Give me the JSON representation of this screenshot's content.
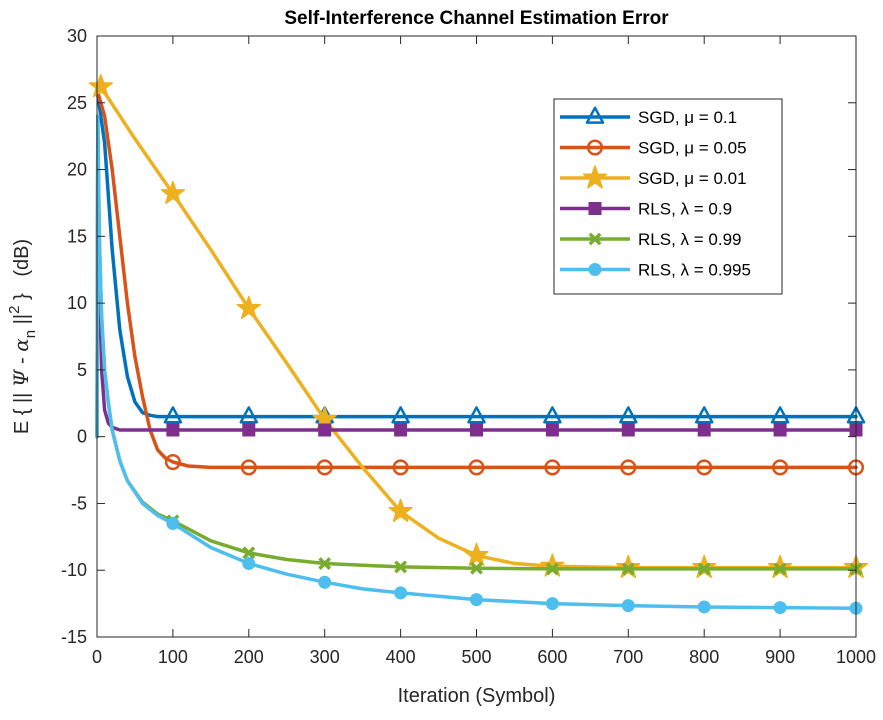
{
  "chart_data": {
    "type": "line",
    "title": "Self-Interference Channel Estimation Error",
    "xlabel": "Iteration (Symbol)",
    "ylabel": "E { || Ψ - α_n ||^2 }   (dB)",
    "xlim": [
      0,
      1000
    ],
    "ylim": [
      -15,
      30
    ],
    "xticks": [
      0,
      100,
      200,
      300,
      400,
      500,
      600,
      700,
      800,
      900,
      1000
    ],
    "yticks": [
      -15,
      -10,
      -5,
      0,
      5,
      10,
      15,
      20,
      25,
      30
    ],
    "grid": false,
    "legend_position": "top-right",
    "series": [
      {
        "name": "SGD, μ = 0.1",
        "color": "#0072BD",
        "marker": "triangle",
        "points": [
          [
            0,
            26
          ],
          [
            10,
            22
          ],
          [
            20,
            14
          ],
          [
            30,
            8
          ],
          [
            40,
            4.5
          ],
          [
            50,
            2.6
          ],
          [
            60,
            1.8
          ],
          [
            70,
            1.6
          ],
          [
            80,
            1.5
          ],
          [
            100,
            1.5
          ],
          [
            200,
            1.5
          ],
          [
            300,
            1.5
          ],
          [
            400,
            1.5
          ],
          [
            500,
            1.5
          ],
          [
            600,
            1.5
          ],
          [
            700,
            1.5
          ],
          [
            800,
            1.5
          ],
          [
            900,
            1.5
          ],
          [
            1000,
            1.5
          ]
        ],
        "marker_x": [
          100,
          200,
          300,
          400,
          500,
          600,
          700,
          800,
          900,
          1000
        ]
      },
      {
        "name": "SGD, μ = 0.05",
        "color": "#D95319",
        "marker": "circle",
        "points": [
          [
            0,
            26
          ],
          [
            10,
            24
          ],
          [
            20,
            20
          ],
          [
            30,
            15
          ],
          [
            40,
            10
          ],
          [
            50,
            6
          ],
          [
            60,
            3
          ],
          [
            70,
            0.5
          ],
          [
            80,
            -1
          ],
          [
            90,
            -1.6
          ],
          [
            100,
            -1.9
          ],
          [
            120,
            -2.2
          ],
          [
            150,
            -2.3
          ],
          [
            200,
            -2.3
          ],
          [
            300,
            -2.3
          ],
          [
            400,
            -2.3
          ],
          [
            500,
            -2.3
          ],
          [
            600,
            -2.3
          ],
          [
            700,
            -2.3
          ],
          [
            800,
            -2.3
          ],
          [
            900,
            -2.3
          ],
          [
            1000,
            -2.3
          ]
        ],
        "marker_x": [
          100,
          200,
          300,
          400,
          500,
          600,
          700,
          800,
          900,
          1000
        ]
      },
      {
        "name": "SGD, μ = 0.01",
        "color": "#EDB120",
        "marker": "star",
        "points": [
          [
            5,
            26.2
          ],
          [
            50,
            22.3
          ],
          [
            100,
            18.2
          ],
          [
            150,
            14
          ],
          [
            200,
            9.6
          ],
          [
            250,
            5.5
          ],
          [
            300,
            1.3
          ],
          [
            350,
            -2.3
          ],
          [
            400,
            -5.6
          ],
          [
            450,
            -7.6
          ],
          [
            500,
            -8.9
          ],
          [
            550,
            -9.5
          ],
          [
            600,
            -9.7
          ],
          [
            700,
            -9.8
          ],
          [
            800,
            -9.8
          ],
          [
            900,
            -9.8
          ],
          [
            1000,
            -9.8
          ]
        ],
        "marker_x": [
          5,
          100,
          200,
          300,
          400,
          500,
          600,
          700,
          800,
          900,
          1000
        ]
      },
      {
        "name": "RLS, λ = 0.9",
        "color": "#7E2F8E",
        "marker": "square",
        "points": [
          [
            0,
            0
          ],
          [
            1,
            22
          ],
          [
            3,
            12
          ],
          [
            6,
            5
          ],
          [
            10,
            2
          ],
          [
            15,
            1
          ],
          [
            20,
            0.7
          ],
          [
            30,
            0.5
          ],
          [
            50,
            0.5
          ],
          [
            100,
            0.5
          ],
          [
            200,
            0.5
          ],
          [
            300,
            0.5
          ],
          [
            400,
            0.5
          ],
          [
            500,
            0.5
          ],
          [
            600,
            0.5
          ],
          [
            700,
            0.5
          ],
          [
            800,
            0.5
          ],
          [
            900,
            0.5
          ],
          [
            1000,
            0.5
          ]
        ],
        "marker_x": [
          100,
          200,
          300,
          400,
          500,
          600,
          700,
          800,
          900,
          1000
        ]
      },
      {
        "name": "RLS, λ = 0.99",
        "color": "#77AC30",
        "marker": "x",
        "points": [
          [
            0,
            0
          ],
          [
            1,
            24
          ],
          [
            3,
            15
          ],
          [
            6,
            9
          ],
          [
            10,
            5
          ],
          [
            15,
            2.5
          ],
          [
            20,
            0.5
          ],
          [
            30,
            -1.8
          ],
          [
            40,
            -3.3
          ],
          [
            60,
            -4.9
          ],
          [
            80,
            -5.8
          ],
          [
            100,
            -6.3
          ],
          [
            150,
            -7.8
          ],
          [
            200,
            -8.7
          ],
          [
            250,
            -9.2
          ],
          [
            300,
            -9.5
          ],
          [
            400,
            -9.75
          ],
          [
            500,
            -9.85
          ],
          [
            600,
            -9.9
          ],
          [
            700,
            -9.9
          ],
          [
            800,
            -9.9
          ],
          [
            900,
            -9.9
          ],
          [
            1000,
            -9.9
          ]
        ],
        "marker_x": [
          100,
          200,
          300,
          400,
          500,
          600,
          700,
          800,
          900,
          1000
        ]
      },
      {
        "name": "RLS, λ = 0.995",
        "color": "#4DBEEE",
        "marker": "dot",
        "points": [
          [
            0,
            0
          ],
          [
            1,
            24
          ],
          [
            3,
            15
          ],
          [
            6,
            9
          ],
          [
            10,
            5
          ],
          [
            15,
            2.5
          ],
          [
            20,
            0.5
          ],
          [
            30,
            -1.8
          ],
          [
            40,
            -3.3
          ],
          [
            60,
            -5
          ],
          [
            80,
            -5.9
          ],
          [
            100,
            -6.5
          ],
          [
            150,
            -8.3
          ],
          [
            200,
            -9.5
          ],
          [
            250,
            -10.3
          ],
          [
            300,
            -10.9
          ],
          [
            350,
            -11.4
          ],
          [
            400,
            -11.7
          ],
          [
            500,
            -12.2
          ],
          [
            600,
            -12.5
          ],
          [
            700,
            -12.65
          ],
          [
            800,
            -12.75
          ],
          [
            900,
            -12.8
          ],
          [
            1000,
            -12.85
          ]
        ],
        "marker_x": [
          100,
          200,
          300,
          400,
          500,
          600,
          700,
          800,
          900,
          1000
        ]
      }
    ]
  }
}
